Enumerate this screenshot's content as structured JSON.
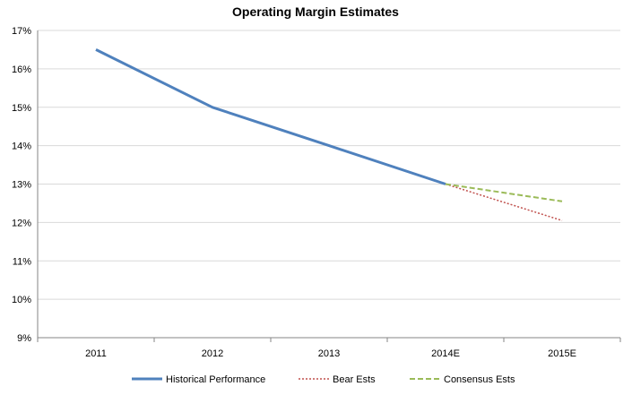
{
  "chart_data": {
    "type": "line",
    "title": "Operating Margin Estimates",
    "xlabel": "",
    "ylabel": "",
    "categories": [
      "2011",
      "2012",
      "2013",
      "2014E",
      "2015E"
    ],
    "yticks": [
      "9%",
      "10%",
      "11%",
      "12%",
      "13%",
      "14%",
      "15%",
      "16%",
      "17%"
    ],
    "ylim": [
      9,
      17
    ],
    "grid": true,
    "legend_position": "bottom",
    "series": [
      {
        "name": "Historical Performance",
        "style": "solid",
        "color": "#4f81bd",
        "values": [
          16.5,
          15.0,
          14.0,
          13.0,
          null
        ]
      },
      {
        "name": "Bear Ests",
        "style": "dotted",
        "color": "#c0504d",
        "values": [
          null,
          null,
          null,
          13.0,
          12.05
        ]
      },
      {
        "name": "Consensus Ests",
        "style": "dashed",
        "color": "#9bbb59",
        "values": [
          null,
          null,
          null,
          13.0,
          12.55
        ]
      }
    ]
  }
}
